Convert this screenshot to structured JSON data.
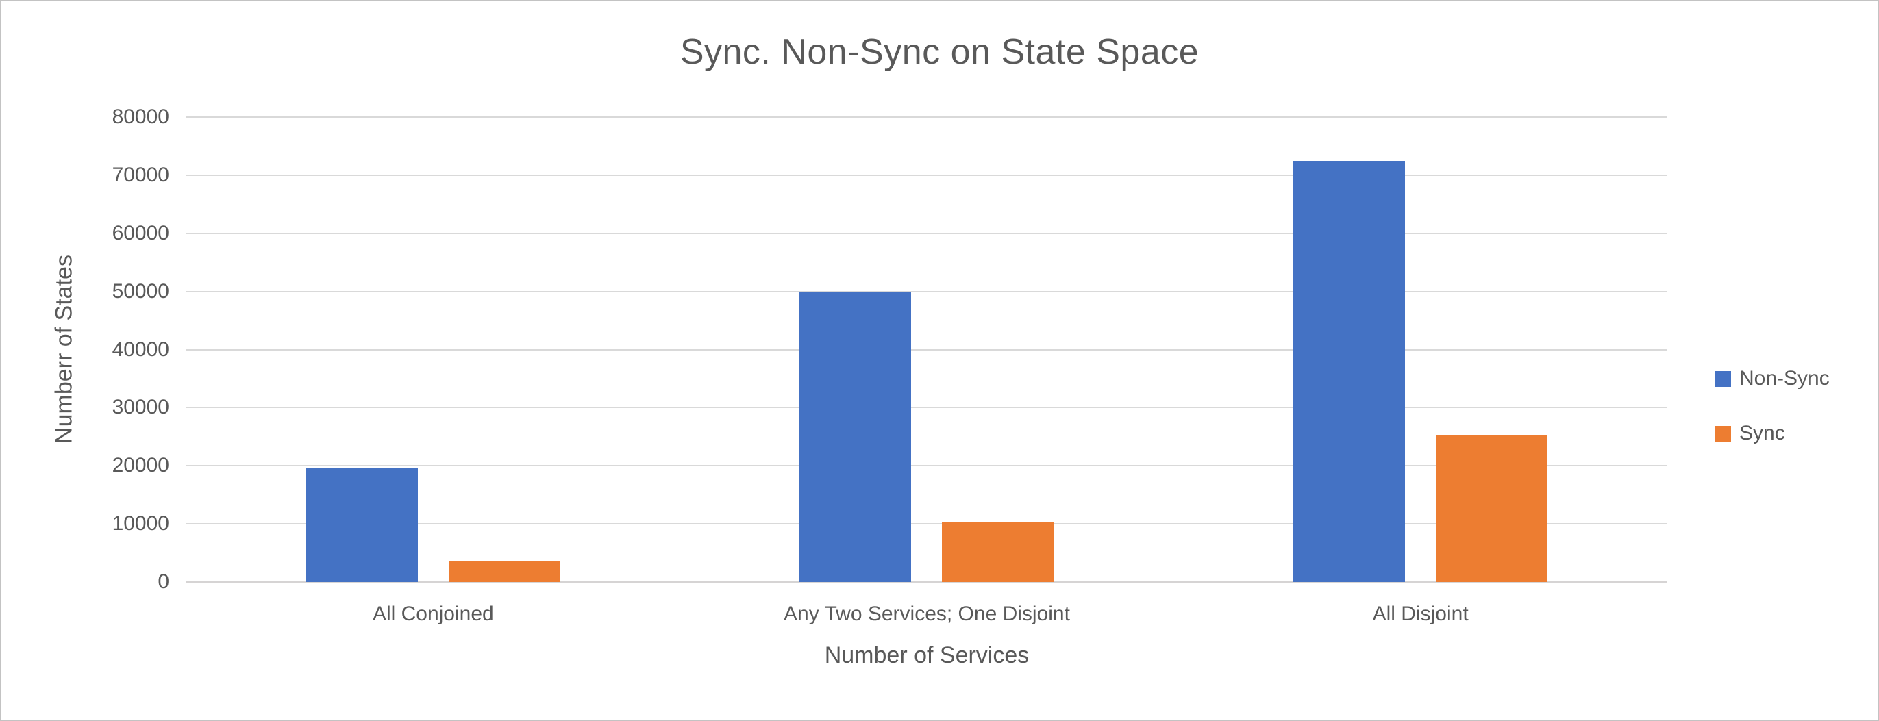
{
  "chart_data": {
    "type": "bar",
    "title": "Sync. Non-Sync on State Space",
    "xlabel": "Number of Services",
    "ylabel": "Numberr of States",
    "categories": [
      "All Conjoined",
      "Any Two Services; One Disjoint",
      "All Disjoint"
    ],
    "series": [
      {
        "name": "Non-Sync",
        "color": "#4472C4",
        "values": [
          19600,
          50000,
          72500
        ]
      },
      {
        "name": "Sync",
        "color": "#ED7D31",
        "values": [
          3700,
          10400,
          25300
        ]
      }
    ],
    "ylim": [
      0,
      80000
    ],
    "yticks": [
      0,
      10000,
      20000,
      30000,
      40000,
      50000,
      60000,
      70000,
      80000
    ],
    "grid": true,
    "legend_position": "right"
  },
  "colors": {
    "text": "#595959",
    "gridline": "#D9D9D9",
    "axis_line": "#D6D4D4",
    "background": "#FFFFFF",
    "frame_border": "#C3C3C3"
  }
}
